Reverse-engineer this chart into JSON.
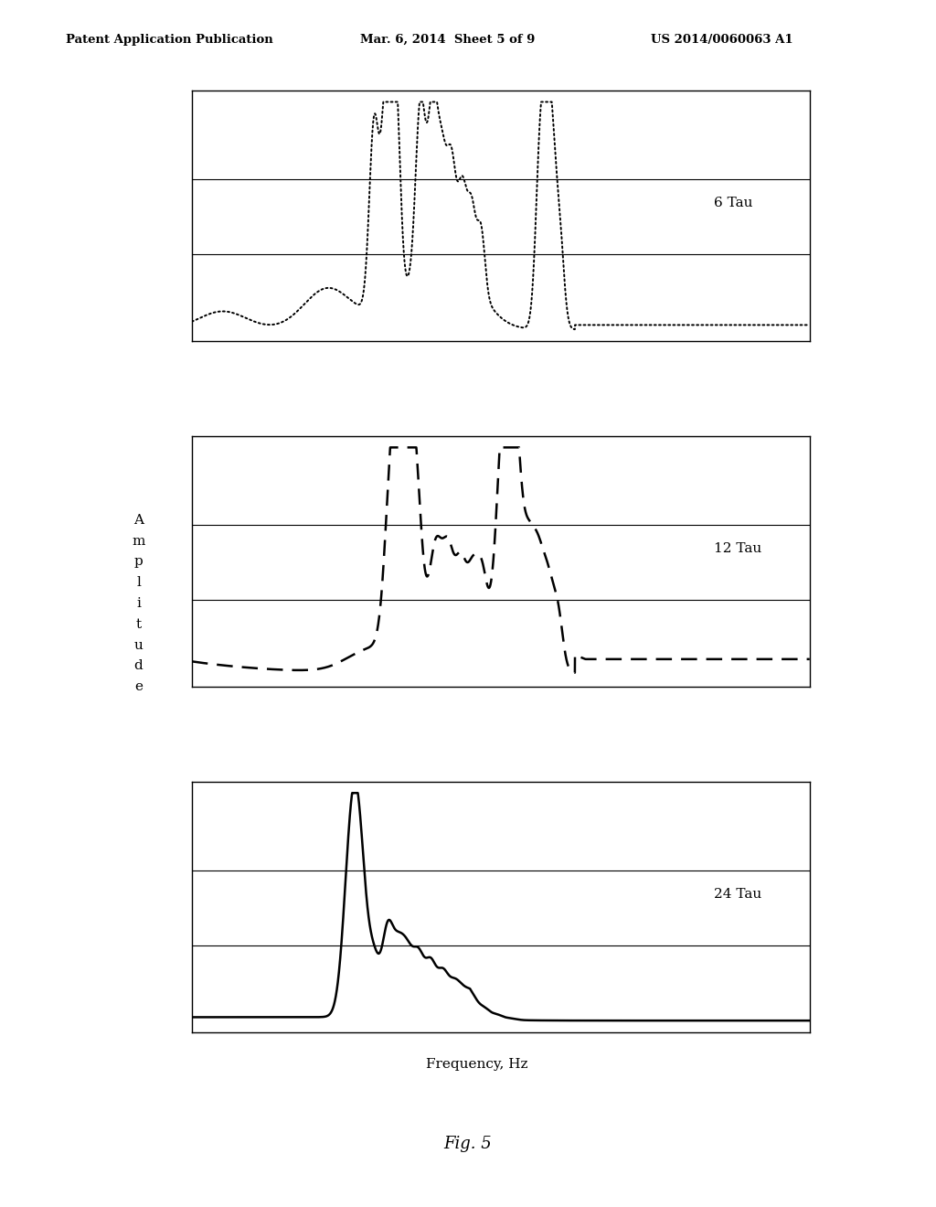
{
  "header_left": "Patent Application Publication",
  "header_mid": "Mar. 6, 2014  Sheet 5 of 9",
  "header_right": "US 2014/0060063 A1",
  "y_label": "A\nm\np\nl\ni\nt\nu\nd\ne",
  "x_label": "Frequency, Hz",
  "fig_label": "Fig. 5",
  "panel1_label": "6 Tau",
  "panel2_label": "12 Tau",
  "panel3_label": "24 Tau",
  "bg_color": "#ffffff",
  "line_color": "#000000"
}
